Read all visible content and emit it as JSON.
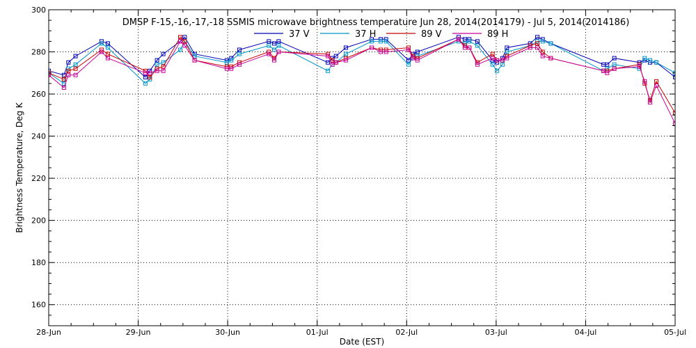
{
  "chart_data": {
    "type": "line",
    "title": "DMSP F-15,-16,-17,-18 SSMIS microwave brightness temperature Jun 28, 2014(2014179) - Jul  5, 2014(2014186)",
    "xlabel": "Date (EST)",
    "ylabel": "Brightness Temperature, Deg K",
    "xlim": [
      0,
      7
    ],
    "ylim": [
      150,
      300
    ],
    "x_tick_labels": [
      "28-Jun",
      "29-Jun",
      "30-Jun",
      "01-Jul",
      "02-Jul",
      "03-Jul",
      "04-Jul",
      "05-Jul"
    ],
    "y_ticks": [
      160,
      180,
      200,
      220,
      240,
      260,
      280,
      300
    ],
    "grid": true,
    "legend_position": "top",
    "series": [
      {
        "name": "37 V",
        "color": "#0000b4",
        "x": [
          0,
          0.17,
          0.22,
          0.3,
          0.59,
          0.66,
          1.08,
          1.13,
          1.21,
          1.28,
          1.47,
          1.52,
          1.63,
          1.99,
          2.04,
          2.13,
          2.46,
          2.52,
          2.57,
          3.12,
          3.17,
          3.21,
          3.32,
          3.61,
          3.71,
          3.77,
          4.02,
          4.07,
          4.12,
          4.58,
          4.65,
          4.7,
          4.79,
          4.96,
          5.01,
          5.07,
          5.12,
          5.38,
          5.46,
          5.52,
          5.61,
          6.2,
          6.24,
          6.32,
          6.6,
          6.66,
          6.72,
          6.79,
          7
        ],
        "values": [
          271,
          269,
          275,
          278,
          285,
          284,
          268,
          271,
          276,
          279,
          285,
          287,
          279,
          276,
          277,
          281,
          285,
          284,
          285,
          275,
          277,
          278,
          282,
          286,
          286,
          286,
          276,
          279,
          280,
          287,
          286,
          286,
          285,
          276,
          275,
          277,
          282,
          284,
          287,
          286,
          284,
          274,
          274,
          277,
          275,
          276,
          275,
          275,
          268
        ]
      },
      {
        "name": "37 H",
        "color": "#0096c8",
        "x": [
          0,
          0.17,
          0.22,
          0.3,
          0.59,
          0.66,
          1.08,
          1.13,
          1.21,
          1.28,
          1.47,
          1.52,
          1.63,
          1.99,
          2.04,
          2.13,
          2.46,
          2.52,
          2.57,
          3.12,
          3.17,
          3.21,
          3.32,
          3.61,
          3.71,
          3.77,
          4.02,
          4.07,
          4.12,
          4.58,
          4.65,
          4.7,
          4.79,
          4.96,
          5.01,
          5.07,
          5.12,
          5.38,
          5.46,
          5.52,
          5.61,
          6.2,
          6.24,
          6.32,
          6.6,
          6.66,
          6.72,
          6.79,
          7
        ],
        "values": [
          270,
          265,
          272,
          274,
          284,
          282,
          265,
          267,
          274,
          275,
          281,
          285,
          278,
          275,
          276,
          279,
          283,
          281,
          283,
          271,
          274,
          275,
          279,
          285,
          285,
          285,
          274,
          277,
          278,
          285,
          284,
          285,
          283,
          274,
          271,
          274,
          280,
          283,
          285,
          285,
          284,
          271,
          272,
          274,
          272,
          277,
          276,
          275,
          270
        ]
      },
      {
        "name": "89 V",
        "color": "#c80000",
        "x": [
          0,
          0.17,
          0.22,
          0.3,
          0.59,
          0.66,
          1.08,
          1.13,
          1.21,
          1.28,
          1.47,
          1.52,
          1.63,
          1.99,
          2.04,
          2.13,
          2.46,
          2.52,
          2.57,
          3.12,
          3.17,
          3.21,
          3.32,
          3.61,
          3.71,
          3.77,
          4.02,
          4.07,
          4.12,
          4.58,
          4.65,
          4.7,
          4.79,
          4.96,
          5.01,
          5.07,
          5.12,
          5.38,
          5.46,
          5.52,
          5.61,
          6.2,
          6.24,
          6.32,
          6.6,
          6.66,
          6.72,
          6.79,
          7
        ],
        "values": [
          270,
          267,
          271,
          272,
          281,
          279,
          271,
          268,
          272,
          273,
          287,
          285,
          276,
          273,
          273,
          275,
          280,
          277,
          280,
          279,
          276,
          275,
          277,
          282,
          281,
          281,
          282,
          278,
          277,
          286,
          283,
          282,
          275,
          279,
          276,
          276,
          278,
          283,
          284,
          280,
          277,
          271,
          271,
          272,
          274,
          265,
          257,
          266,
          251
        ]
      },
      {
        "name": "89 H",
        "color": "#c80096",
        "x": [
          0,
          0.17,
          0.22,
          0.3,
          0.59,
          0.66,
          1.08,
          1.13,
          1.21,
          1.28,
          1.47,
          1.52,
          1.63,
          1.99,
          2.04,
          2.13,
          2.46,
          2.52,
          2.57,
          3.12,
          3.17,
          3.21,
          3.32,
          3.61,
          3.71,
          3.77,
          4.02,
          4.07,
          4.12,
          4.58,
          4.65,
          4.7,
          4.79,
          4.96,
          5.01,
          5.07,
          5.12,
          5.38,
          5.46,
          5.52,
          5.61,
          6.2,
          6.24,
          6.32,
          6.6,
          6.66,
          6.72,
          6.79,
          7
        ],
        "values": [
          269,
          263,
          269,
          269,
          280,
          277,
          270,
          270,
          271,
          271,
          285,
          283,
          276,
          272,
          272,
          274,
          279,
          276,
          280,
          278,
          274,
          275,
          276,
          282,
          280,
          280,
          281,
          277,
          276,
          286,
          282,
          282,
          274,
          277,
          276,
          276,
          277,
          282,
          282,
          278,
          277,
          271,
          270,
          272,
          273,
          266,
          256,
          264,
          246
        ]
      }
    ]
  }
}
